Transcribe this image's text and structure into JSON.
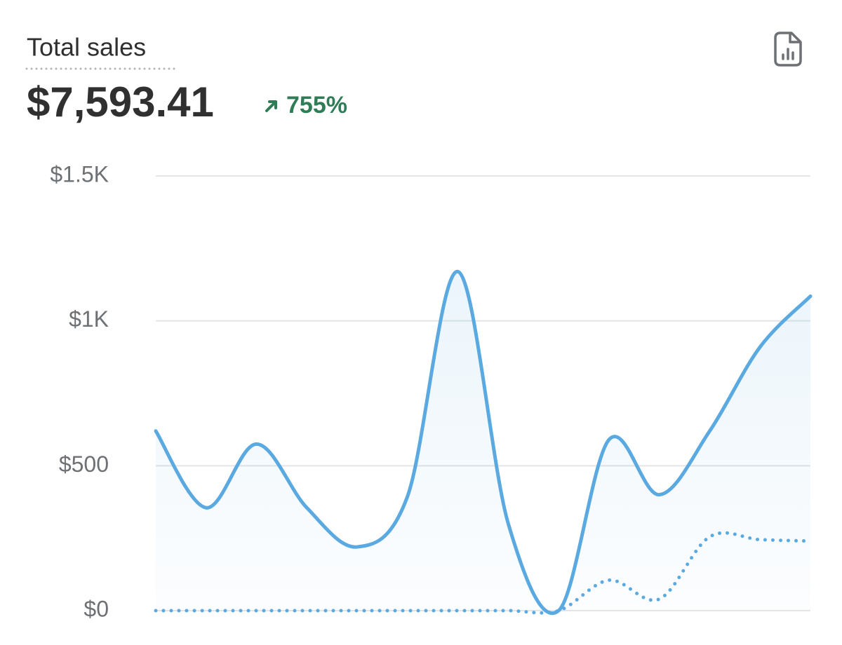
{
  "chart_data": {
    "type": "line",
    "title": "Total sales",
    "total": "$7,593.41",
    "change": "755%",
    "change_color": "#2e7d57",
    "grid": true,
    "ylim": [
      0,
      1500
    ],
    "yticks": [
      {
        "value": 0,
        "label": "$0"
      },
      {
        "value": 500,
        "label": "$500"
      },
      {
        "value": 1000,
        "label": "$1K"
      },
      {
        "value": 1500,
        "label": "$1.5K"
      }
    ],
    "series": [
      {
        "color": "#5aa9e0",
        "line_style": "solid",
        "fill": true,
        "values": [
          620,
          355,
          575,
          355,
          220,
          395,
          1170,
          300,
          0,
          590,
          400,
          620,
          910,
          1085
        ]
      },
      {
        "color": "#5aa9e0",
        "line_style": "dotted",
        "fill": false,
        "values": [
          0,
          0,
          0,
          0,
          0,
          0,
          0,
          0,
          0,
          105,
          40,
          255,
          245,
          240
        ]
      }
    ]
  }
}
